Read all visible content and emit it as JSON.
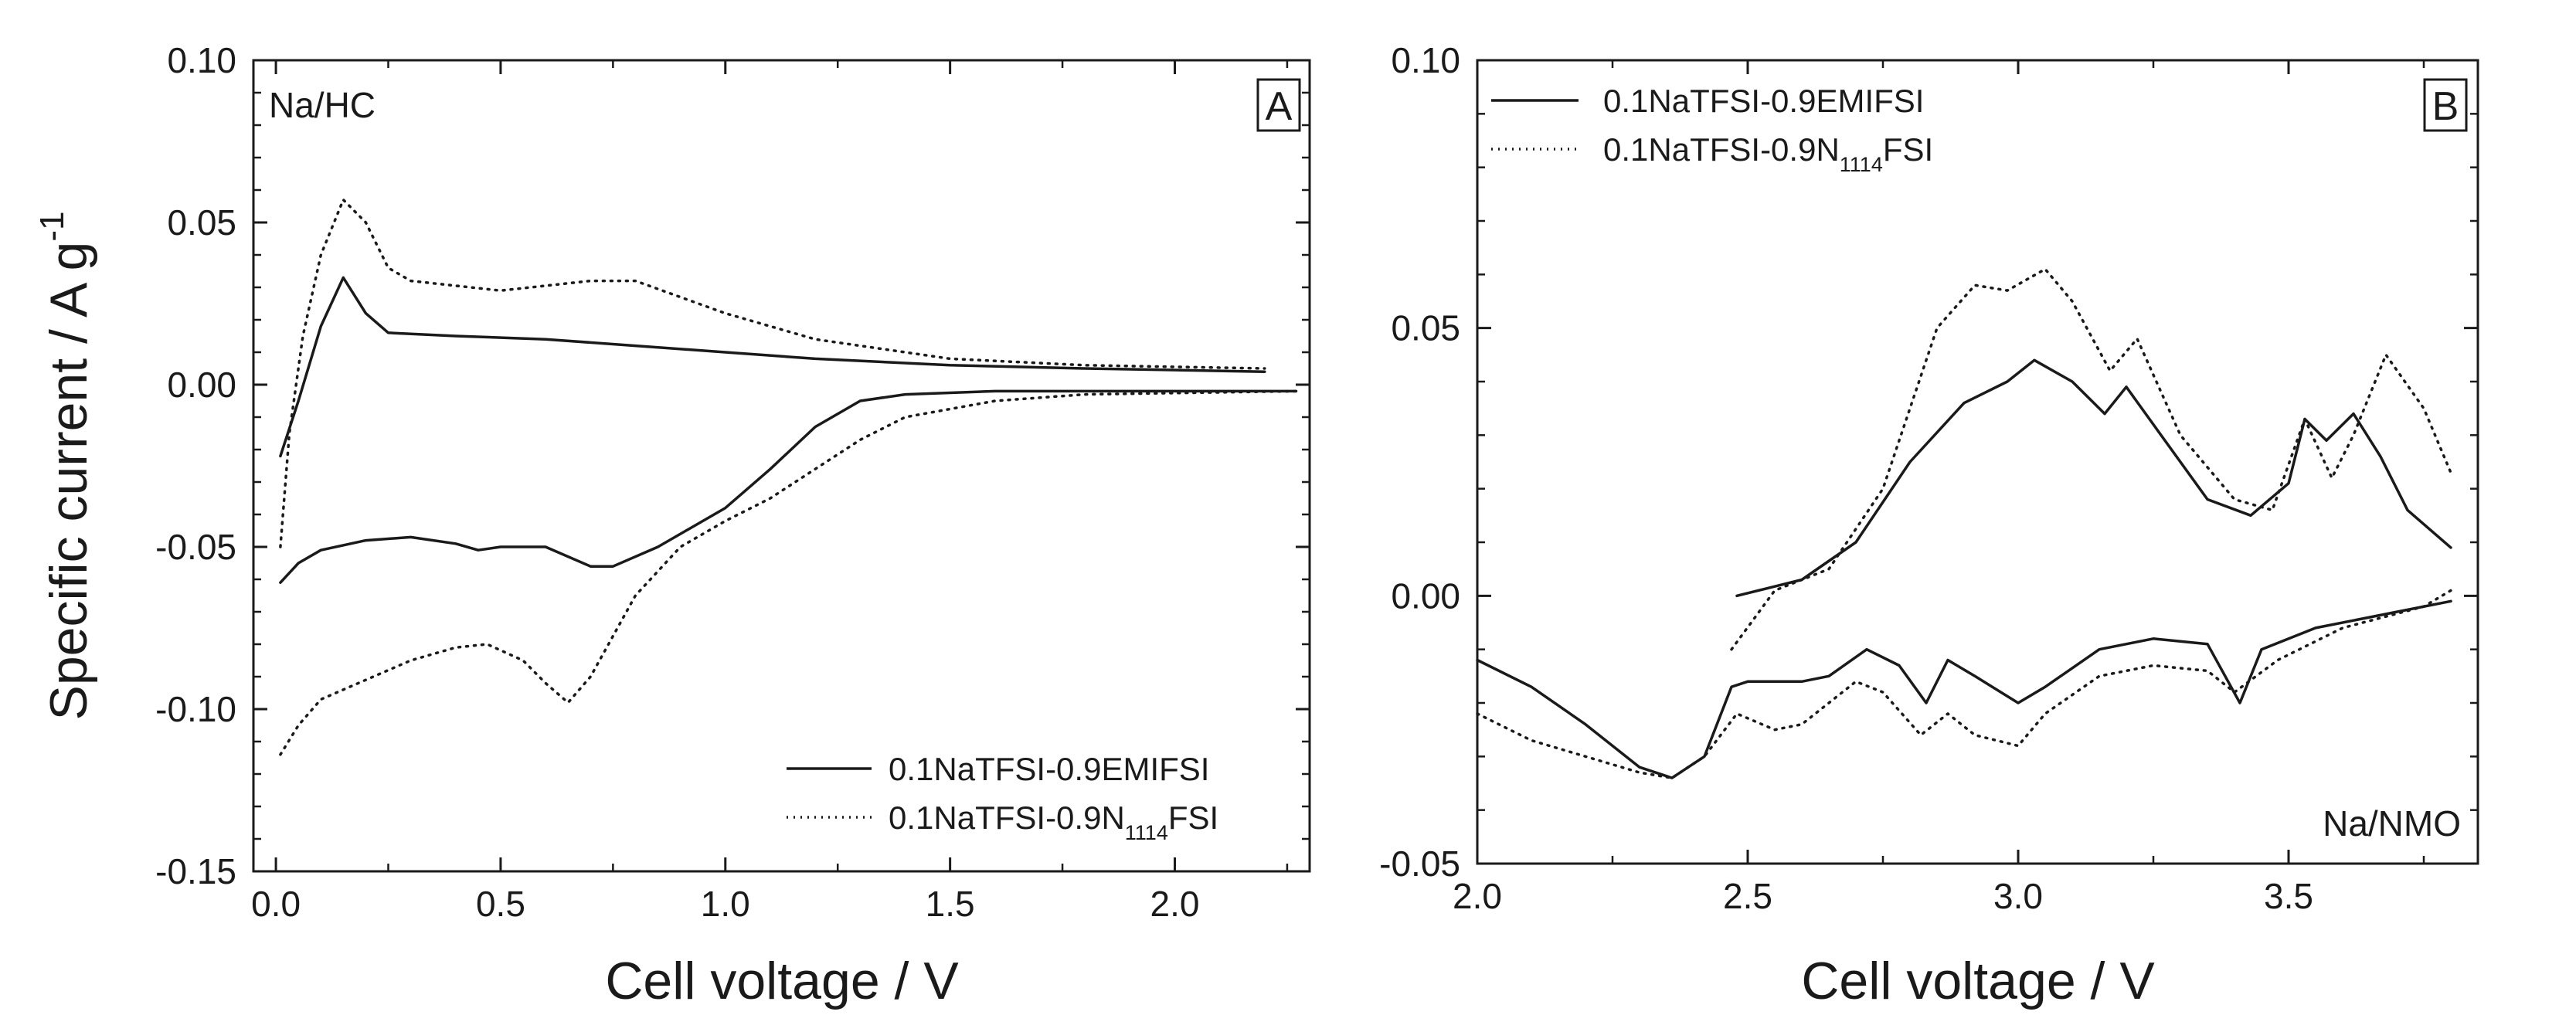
{
  "chart_data": [
    {
      "type": "line",
      "panel_label": "A",
      "corner_label": "Na/HC",
      "corner_label_position": "top-left",
      "xlabel": "Cell voltage / V",
      "ylabel_main": "Specific current / A g",
      "ylabel_sup": "-1",
      "xlim": [
        -0.05,
        2.3
      ],
      "ylim": [
        -0.15,
        0.1
      ],
      "xticks": [
        0.0,
        0.5,
        1.0,
        1.5,
        2.0
      ],
      "xtick_labels": [
        "0.0",
        "0.5",
        "1.0",
        "1.5",
        "2.0"
      ],
      "yticks": [
        -0.15,
        -0.1,
        -0.05,
        0.0,
        0.05,
        0.1
      ],
      "ytick_labels": [
        "-0.15",
        "-0.10",
        "-0.05",
        "0.00",
        "0.05",
        "0.10"
      ],
      "legend_position": "bottom-right",
      "series": [
        {
          "name": "0.1NaTFSI-0.9EMIFSI",
          "legend_main": "0.1NaTFSI-0.9EMIFSI",
          "style": "solid",
          "segments": [
            [
              [
                0.01,
                -0.022
              ],
              [
                0.05,
                -0.005
              ],
              [
                0.1,
                0.018
              ],
              [
                0.15,
                0.033
              ],
              [
                0.2,
                0.022
              ],
              [
                0.25,
                0.016
              ],
              [
                0.4,
                0.015
              ],
              [
                0.6,
                0.014
              ],
              [
                0.8,
                0.012
              ],
              [
                1.0,
                0.01
              ],
              [
                1.2,
                0.008
              ],
              [
                1.5,
                0.006
              ],
              [
                1.8,
                0.005
              ],
              [
                2.2,
                0.004
              ]
            ],
            [
              [
                0.01,
                -0.061
              ],
              [
                0.05,
                -0.055
              ],
              [
                0.1,
                -0.051
              ],
              [
                0.2,
                -0.048
              ],
              [
                0.3,
                -0.047
              ],
              [
                0.4,
                -0.049
              ],
              [
                0.45,
                -0.051
              ],
              [
                0.5,
                -0.05
              ],
              [
                0.6,
                -0.05
              ],
              [
                0.7,
                -0.056
              ],
              [
                0.75,
                -0.056
              ],
              [
                0.85,
                -0.05
              ],
              [
                1.0,
                -0.038
              ],
              [
                1.1,
                -0.026
              ],
              [
                1.2,
                -0.013
              ],
              [
                1.3,
                -0.005
              ],
              [
                1.4,
                -0.003
              ],
              [
                1.6,
                -0.002
              ],
              [
                1.9,
                -0.002
              ],
              [
                2.27,
                -0.002
              ]
            ]
          ]
        },
        {
          "name": "0.1NaTFSI-0.9N1114FSI",
          "legend_main": "0.1NaTFSI-0.9N",
          "legend_sub": "1114",
          "legend_tail": "FSI",
          "style": "dotted",
          "segments": [
            [
              [
                0.01,
                -0.05
              ],
              [
                0.03,
                -0.015
              ],
              [
                0.06,
                0.015
              ],
              [
                0.1,
                0.04
              ],
              [
                0.15,
                0.057
              ],
              [
                0.2,
                0.05
              ],
              [
                0.25,
                0.036
              ],
              [
                0.3,
                0.032
              ],
              [
                0.5,
                0.029
              ],
              [
                0.7,
                0.032
              ],
              [
                0.8,
                0.032
              ],
              [
                1.0,
                0.022
              ],
              [
                1.2,
                0.014
              ],
              [
                1.5,
                0.008
              ],
              [
                1.8,
                0.006
              ],
              [
                2.2,
                0.005
              ]
            ],
            [
              [
                0.01,
                -0.114
              ],
              [
                0.05,
                -0.105
              ],
              [
                0.1,
                -0.097
              ],
              [
                0.2,
                -0.091
              ],
              [
                0.3,
                -0.085
              ],
              [
                0.4,
                -0.081
              ],
              [
                0.47,
                -0.08
              ],
              [
                0.55,
                -0.085
              ],
              [
                0.6,
                -0.092
              ],
              [
                0.65,
                -0.098
              ],
              [
                0.7,
                -0.09
              ],
              [
                0.8,
                -0.065
              ],
              [
                0.9,
                -0.05
              ],
              [
                1.0,
                -0.042
              ],
              [
                1.1,
                -0.035
              ],
              [
                1.2,
                -0.026
              ],
              [
                1.3,
                -0.017
              ],
              [
                1.4,
                -0.01
              ],
              [
                1.6,
                -0.005
              ],
              [
                1.8,
                -0.003
              ],
              [
                2.27,
                -0.002
              ]
            ]
          ]
        }
      ]
    },
    {
      "type": "line",
      "panel_label": "B",
      "corner_label": "Na/NMO",
      "corner_label_position": "bottom-right",
      "xlabel": "Cell voltage / V",
      "xlim": [
        2.0,
        3.85
      ],
      "ylim": [
        -0.05,
        0.1
      ],
      "xticks": [
        2.0,
        2.5,
        3.0,
        3.5
      ],
      "xtick_labels": [
        "2.0",
        "2.5",
        "3.0",
        "3.5"
      ],
      "yticks": [
        -0.05,
        0.0,
        0.05,
        0.1
      ],
      "ytick_labels": [
        "-0.05",
        "0.00",
        "0.05",
        "0.10"
      ],
      "legend_position": "top-left",
      "series": [
        {
          "name": "0.1NaTFSI-0.9EMIFSI",
          "legend_main": "0.1NaTFSI-0.9EMIFSI",
          "style": "solid",
          "segments": [
            [
              [
                2.48,
                0.0
              ],
              [
                2.6,
                0.003
              ],
              [
                2.7,
                0.01
              ],
              [
                2.8,
                0.025
              ],
              [
                2.9,
                0.036
              ],
              [
                2.98,
                0.04
              ],
              [
                3.03,
                0.044
              ],
              [
                3.1,
                0.04
              ],
              [
                3.16,
                0.034
              ],
              [
                3.2,
                0.039
              ],
              [
                3.25,
                0.032
              ],
              [
                3.35,
                0.018
              ],
              [
                3.43,
                0.015
              ],
              [
                3.5,
                0.021
              ],
              [
                3.53,
                0.033
              ],
              [
                3.57,
                0.029
              ],
              [
                3.62,
                0.034
              ],
              [
                3.67,
                0.026
              ],
              [
                3.72,
                0.016
              ],
              [
                3.8,
                0.009
              ]
            ],
            [
              [
                2.0,
                -0.012
              ],
              [
                2.1,
                -0.017
              ],
              [
                2.2,
                -0.024
              ],
              [
                2.3,
                -0.032
              ],
              [
                2.36,
                -0.034
              ],
              [
                2.42,
                -0.03
              ],
              [
                2.47,
                -0.017
              ],
              [
                2.5,
                -0.016
              ],
              [
                2.6,
                -0.016
              ],
              [
                2.65,
                -0.015
              ],
              [
                2.72,
                -0.01
              ],
              [
                2.78,
                -0.013
              ],
              [
                2.83,
                -0.02
              ],
              [
                2.87,
                -0.012
              ],
              [
                2.92,
                -0.015
              ],
              [
                3.0,
                -0.02
              ],
              [
                3.05,
                -0.017
              ],
              [
                3.15,
                -0.01
              ],
              [
                3.25,
                -0.008
              ],
              [
                3.35,
                -0.009
              ],
              [
                3.41,
                -0.02
              ],
              [
                3.45,
                -0.01
              ],
              [
                3.55,
                -0.006
              ],
              [
                3.7,
                -0.003
              ],
              [
                3.8,
                -0.001
              ]
            ]
          ]
        },
        {
          "name": "0.1NaTFSI-0.9N1114FSI",
          "legend_main": "0.1NaTFSI-0.9N",
          "legend_sub": "1114",
          "legend_tail": "FSI",
          "style": "dotted",
          "segments": [
            [
              [
                2.47,
                -0.01
              ],
              [
                2.55,
                0.001
              ],
              [
                2.65,
                0.005
              ],
              [
                2.75,
                0.02
              ],
              [
                2.85,
                0.05
              ],
              [
                2.92,
                0.058
              ],
              [
                2.98,
                0.057
              ],
              [
                3.05,
                0.061
              ],
              [
                3.1,
                0.055
              ],
              [
                3.17,
                0.042
              ],
              [
                3.22,
                0.048
              ],
              [
                3.3,
                0.03
              ],
              [
                3.4,
                0.018
              ],
              [
                3.47,
                0.016
              ],
              [
                3.53,
                0.033
              ],
              [
                3.58,
                0.022
              ],
              [
                3.62,
                0.03
              ],
              [
                3.68,
                0.045
              ],
              [
                3.75,
                0.035
              ],
              [
                3.8,
                0.023
              ]
            ],
            [
              [
                2.0,
                -0.022
              ],
              [
                2.1,
                -0.027
              ],
              [
                2.2,
                -0.03
              ],
              [
                2.3,
                -0.033
              ],
              [
                2.36,
                -0.034
              ],
              [
                2.42,
                -0.03
              ],
              [
                2.48,
                -0.022
              ],
              [
                2.55,
                -0.025
              ],
              [
                2.6,
                -0.024
              ],
              [
                2.7,
                -0.016
              ],
              [
                2.75,
                -0.018
              ],
              [
                2.82,
                -0.026
              ],
              [
                2.87,
                -0.022
              ],
              [
                2.92,
                -0.026
              ],
              [
                3.0,
                -0.028
              ],
              [
                3.05,
                -0.022
              ],
              [
                3.15,
                -0.015
              ],
              [
                3.25,
                -0.013
              ],
              [
                3.35,
                -0.014
              ],
              [
                3.4,
                -0.018
              ],
              [
                3.48,
                -0.012
              ],
              [
                3.6,
                -0.006
              ],
              [
                3.75,
                -0.002
              ],
              [
                3.8,
                0.001
              ]
            ]
          ]
        }
      ]
    }
  ]
}
